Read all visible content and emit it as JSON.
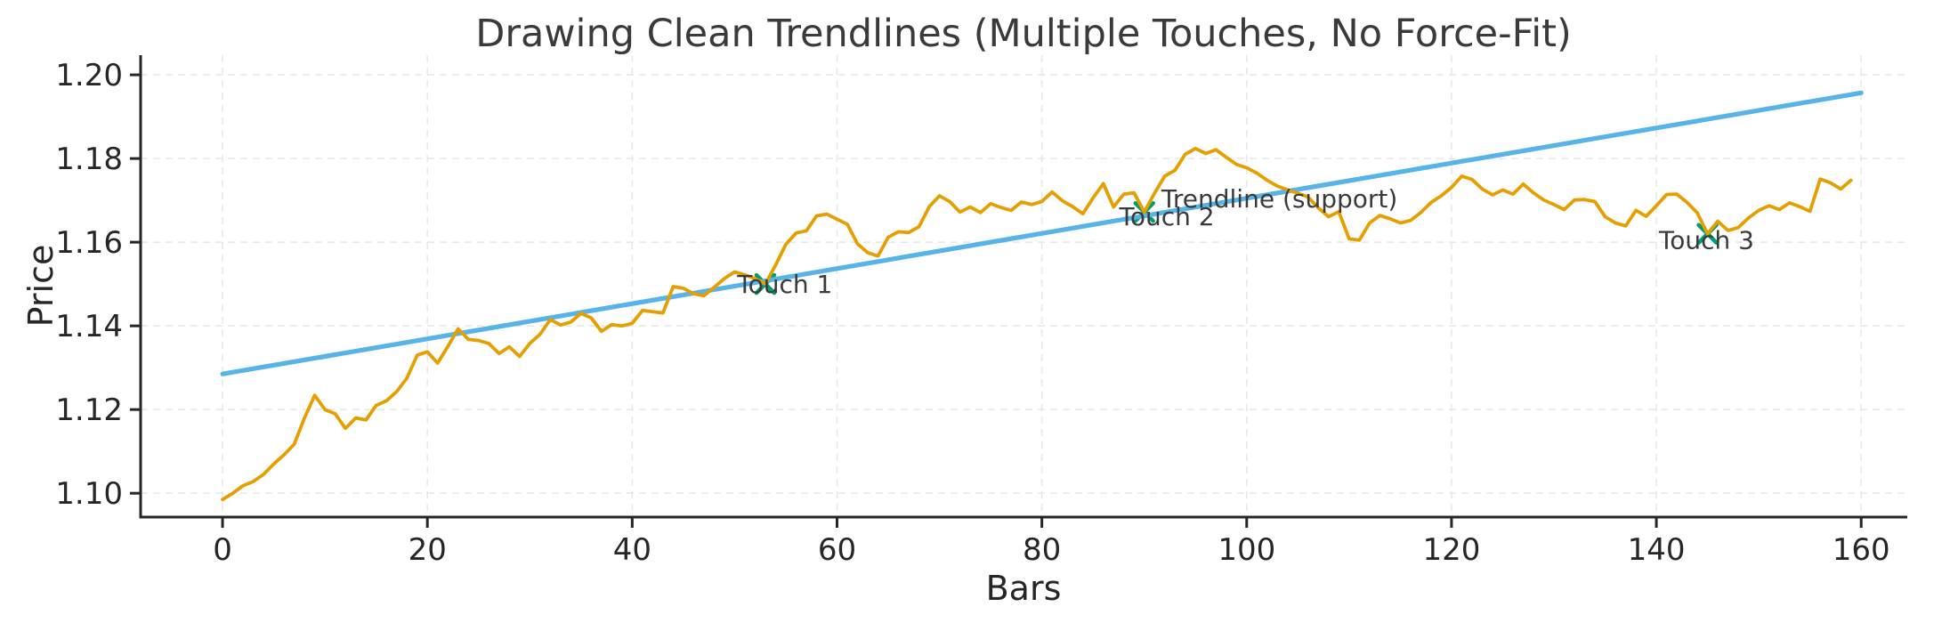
{
  "chart_data": {
    "type": "line",
    "title": "Drawing Clean Trendlines (Multiple Touches, No Force-Fit)",
    "xlabel": "Bars",
    "ylabel": "Price",
    "xlim": [
      -8,
      164.5
    ],
    "ylim": [
      1.0943,
      1.2047
    ],
    "xticks": [
      0,
      20,
      40,
      60,
      80,
      100,
      120,
      140,
      160
    ],
    "yticks": [
      1.1,
      1.12,
      1.14,
      1.16,
      1.18,
      1.2
    ],
    "grid": true,
    "grid_color": "#e8e8e8",
    "spine_color": "#262626",
    "text_color": "#262626",
    "annotation_color": "#3a3a3a",
    "series": [
      {
        "name": "price",
        "color": "#E69F00",
        "width": 3.8,
        "values": [
          1.0985,
          1.1,
          1.1018,
          1.1028,
          1.1045,
          1.107,
          1.1092,
          1.1117,
          1.118,
          1.1234,
          1.12,
          1.119,
          1.1155,
          1.118,
          1.1175,
          1.121,
          1.1221,
          1.1243,
          1.1275,
          1.133,
          1.1338,
          1.1311,
          1.1351,
          1.1393,
          1.1368,
          1.1365,
          1.1358,
          1.1334,
          1.135,
          1.1327,
          1.1358,
          1.138,
          1.1415,
          1.1402,
          1.1409,
          1.143,
          1.1419,
          1.1387,
          1.1403,
          1.14,
          1.1406,
          1.1437,
          1.1434,
          1.1431,
          1.1494,
          1.149,
          1.1477,
          1.1472,
          1.1492,
          1.1513,
          1.1529,
          1.1522,
          1.1513,
          1.15,
          1.1545,
          1.1595,
          1.1622,
          1.1627,
          1.1663,
          1.1667,
          1.1655,
          1.1643,
          1.1596,
          1.1575,
          1.1567,
          1.1612,
          1.1625,
          1.1623,
          1.1637,
          1.1685,
          1.1711,
          1.1697,
          1.1672,
          1.1684,
          1.1671,
          1.1692,
          1.1683,
          1.1676,
          1.1696,
          1.169,
          1.1697,
          1.172,
          1.1699,
          1.1685,
          1.1668,
          1.1706,
          1.174,
          1.1684,
          1.1715,
          1.1718,
          1.1672,
          1.1717,
          1.1758,
          1.1772,
          1.181,
          1.1824,
          1.1812,
          1.1821,
          1.1803,
          1.1786,
          1.1778,
          1.1765,
          1.1748,
          1.1734,
          1.1725,
          1.1717,
          1.1708,
          1.1682,
          1.1661,
          1.1673,
          1.1608,
          1.1605,
          1.1646,
          1.1664,
          1.1656,
          1.1646,
          1.1652,
          1.1671,
          1.1695,
          1.1711,
          1.1731,
          1.1758,
          1.175,
          1.1727,
          1.1713,
          1.1725,
          1.1715,
          1.1739,
          1.1718,
          1.1701,
          1.169,
          1.1678,
          1.1701,
          1.1702,
          1.1697,
          1.1661,
          1.1646,
          1.1639,
          1.1676,
          1.1662,
          1.1687,
          1.1714,
          1.1715,
          1.1695,
          1.167,
          1.162,
          1.165,
          1.1628,
          1.1635,
          1.1658,
          1.1676,
          1.1687,
          1.1678,
          1.1694,
          1.1685,
          1.1674,
          1.1751,
          1.1742,
          1.1727,
          1.1748
        ]
      },
      {
        "name": "Trendline (support)",
        "color": "#56B4E9",
        "width": 5.2,
        "x": [
          0,
          160
        ],
        "values": [
          1.1285,
          1.1957
        ]
      }
    ],
    "markers": {
      "symbol": "x",
      "color": "#009E73",
      "size": 20,
      "points": [
        {
          "x": 53,
          "y": 1.15
        },
        {
          "x": 90,
          "y": 1.1672
        },
        {
          "x": 145,
          "y": 1.162
        }
      ]
    },
    "annotations": [
      {
        "text": "Touch 1",
        "x": 54.9,
        "y": 1.15
      },
      {
        "text": "Touch 2",
        "x": 92.2,
        "y": 1.1662
      },
      {
        "text": "Trendline (support)",
        "x": 103.2,
        "y": 1.1705
      },
      {
        "text": "Touch 3",
        "x": 144.9,
        "y": 1.1606
      }
    ]
  }
}
